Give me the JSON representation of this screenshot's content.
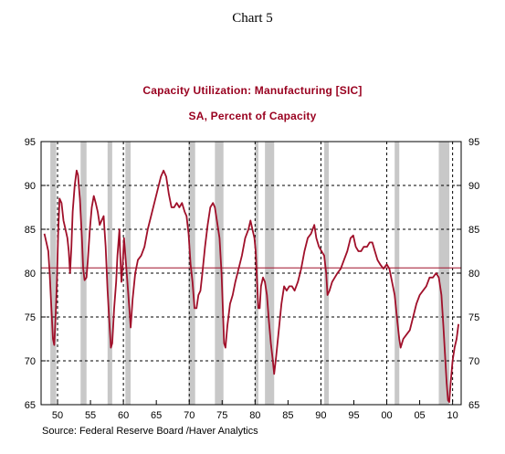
{
  "chart_label": "Chart 5",
  "source": "Source:  Federal Reserve Board /Haver Analytics",
  "chart_data": {
    "type": "line",
    "title": "Capacity Utilization: Manufacturing [SIC]",
    "subtitle": "SA, Percent of Capacity",
    "xlabel": "",
    "ylabel": "",
    "xlim": [
      1947.5,
      2011.3
    ],
    "ylim": [
      65,
      95
    ],
    "yticks": [
      65,
      70,
      75,
      80,
      85,
      90,
      95
    ],
    "xticks": [
      1950,
      1955,
      1960,
      1965,
      1970,
      1975,
      1980,
      1985,
      1990,
      1995,
      2000,
      2005,
      2010
    ],
    "xtick_labels": [
      "50",
      "55",
      "60",
      "65",
      "70",
      "75",
      "80",
      "85",
      "90",
      "95",
      "00",
      "05",
      "10"
    ],
    "y_axis_both_sides": true,
    "grid": "dashed vertical lines at decade marks, dashed horizontal lines at y ticks",
    "reference_line": 80.6,
    "colors": {
      "series": "#a0102a",
      "recession": "#c8c8c8",
      "reference": "#a0102a"
    },
    "recessions": [
      [
        1948.9,
        1949.8
      ],
      [
        1953.5,
        1954.4
      ],
      [
        1957.6,
        1958.3
      ],
      [
        1960.3,
        1961.1
      ],
      [
        1969.9,
        1970.9
      ],
      [
        1973.9,
        1975.2
      ],
      [
        1980.0,
        1980.5
      ],
      [
        1981.5,
        1982.9
      ],
      [
        1990.5,
        1991.2
      ],
      [
        2001.2,
        2001.9
      ],
      [
        2007.9,
        2009.5
      ]
    ],
    "series": [
      {
        "values": [
          [
            1948.0,
            84.5
          ],
          [
            1948.3,
            83.5
          ],
          [
            1948.6,
            82.5
          ],
          [
            1948.8,
            80.0
          ],
          [
            1949.0,
            77.0
          ],
          [
            1949.3,
            72.5
          ],
          [
            1949.5,
            71.8
          ],
          [
            1949.7,
            75.0
          ],
          [
            1949.9,
            79.0
          ],
          [
            1950.1,
            84.5
          ],
          [
            1950.3,
            88.5
          ],
          [
            1950.6,
            88.0
          ],
          [
            1950.9,
            86.0
          ],
          [
            1951.2,
            85.0
          ],
          [
            1951.5,
            84.0
          ],
          [
            1951.7,
            82.5
          ],
          [
            1951.9,
            80.0
          ],
          [
            1952.1,
            83.0
          ],
          [
            1952.3,
            87.0
          ],
          [
            1952.6,
            90.0
          ],
          [
            1952.9,
            91.7
          ],
          [
            1953.1,
            91.2
          ],
          [
            1953.4,
            88.5
          ],
          [
            1953.7,
            84.0
          ],
          [
            1953.9,
            80.5
          ],
          [
            1954.1,
            79.2
          ],
          [
            1954.4,
            79.5
          ],
          [
            1954.6,
            81.5
          ],
          [
            1954.9,
            85.0
          ],
          [
            1955.2,
            87.5
          ],
          [
            1955.5,
            88.8
          ],
          [
            1955.8,
            88.0
          ],
          [
            1956.1,
            87.0
          ],
          [
            1956.4,
            85.5
          ],
          [
            1956.7,
            86.0
          ],
          [
            1957.0,
            86.5
          ],
          [
            1957.3,
            83.0
          ],
          [
            1957.6,
            78.0
          ],
          [
            1957.9,
            74.0
          ],
          [
            1958.1,
            71.5
          ],
          [
            1958.3,
            72.0
          ],
          [
            1958.6,
            76.0
          ],
          [
            1958.9,
            79.0
          ],
          [
            1959.1,
            82.0
          ],
          [
            1959.4,
            85.0
          ],
          [
            1959.5,
            82.5
          ],
          [
            1959.7,
            79.0
          ],
          [
            1959.9,
            81.0
          ],
          [
            1960.1,
            84.0
          ],
          [
            1960.3,
            82.0
          ],
          [
            1960.6,
            79.0
          ],
          [
            1960.9,
            76.0
          ],
          [
            1961.1,
            73.8
          ],
          [
            1961.4,
            77.0
          ],
          [
            1961.8,
            80.0
          ],
          [
            1962.2,
            81.5
          ],
          [
            1962.7,
            82.0
          ],
          [
            1963.2,
            83.0
          ],
          [
            1963.7,
            85.0
          ],
          [
            1964.2,
            86.5
          ],
          [
            1964.7,
            88.0
          ],
          [
            1965.2,
            89.5
          ],
          [
            1965.7,
            91.0
          ],
          [
            1966.1,
            91.7
          ],
          [
            1966.5,
            91.0
          ],
          [
            1966.9,
            89.0
          ],
          [
            1967.3,
            87.5
          ],
          [
            1967.7,
            87.5
          ],
          [
            1968.1,
            88.0
          ],
          [
            1968.5,
            87.5
          ],
          [
            1968.9,
            88.0
          ],
          [
            1969.3,
            87.0
          ],
          [
            1969.6,
            86.5
          ],
          [
            1969.9,
            84.5
          ],
          [
            1970.2,
            81.0
          ],
          [
            1970.5,
            79.0
          ],
          [
            1970.8,
            76.0
          ],
          [
            1971.1,
            76.0
          ],
          [
            1971.4,
            77.5
          ],
          [
            1971.7,
            78.0
          ],
          [
            1972.0,
            80.0
          ],
          [
            1972.4,
            83.0
          ],
          [
            1972.8,
            85.5
          ],
          [
            1973.2,
            87.5
          ],
          [
            1973.6,
            88.0
          ],
          [
            1973.9,
            87.5
          ],
          [
            1974.2,
            86.0
          ],
          [
            1974.6,
            84.0
          ],
          [
            1974.9,
            80.0
          ],
          [
            1975.1,
            76.0
          ],
          [
            1975.3,
            72.0
          ],
          [
            1975.5,
            71.5
          ],
          [
            1975.8,
            74.0
          ],
          [
            1976.2,
            76.5
          ],
          [
            1976.6,
            77.5
          ],
          [
            1977.0,
            79.0
          ],
          [
            1977.5,
            80.5
          ],
          [
            1978.0,
            82.0
          ],
          [
            1978.5,
            84.0
          ],
          [
            1979.0,
            85.0
          ],
          [
            1979.3,
            86.0
          ],
          [
            1979.6,
            85.0
          ],
          [
            1979.9,
            84.0
          ],
          [
            1980.1,
            82.5
          ],
          [
            1980.3,
            79.0
          ],
          [
            1980.5,
            76.0
          ],
          [
            1980.7,
            76.0
          ],
          [
            1980.9,
            78.5
          ],
          [
            1981.2,
            79.5
          ],
          [
            1981.5,
            79.0
          ],
          [
            1981.8,
            77.5
          ],
          [
            1982.1,
            74.5
          ],
          [
            1982.4,
            72.0
          ],
          [
            1982.7,
            70.0
          ],
          [
            1982.9,
            68.5
          ],
          [
            1983.2,
            70.5
          ],
          [
            1983.6,
            73.5
          ],
          [
            1984.0,
            76.5
          ],
          [
            1984.4,
            78.5
          ],
          [
            1984.8,
            78.0
          ],
          [
            1985.2,
            78.5
          ],
          [
            1985.6,
            78.5
          ],
          [
            1986.0,
            78.0
          ],
          [
            1986.5,
            79.0
          ],
          [
            1987.0,
            80.5
          ],
          [
            1987.5,
            82.5
          ],
          [
            1988.0,
            84.0
          ],
          [
            1988.5,
            84.5
          ],
          [
            1989.0,
            85.5
          ],
          [
            1989.3,
            84.0
          ],
          [
            1989.7,
            83.0
          ],
          [
            1990.1,
            82.5
          ],
          [
            1990.5,
            82.0
          ],
          [
            1990.8,
            80.0
          ],
          [
            1991.0,
            77.5
          ],
          [
            1991.3,
            78.0
          ],
          [
            1991.7,
            79.0
          ],
          [
            1992.1,
            79.5
          ],
          [
            1992.5,
            80.0
          ],
          [
            1993.0,
            80.5
          ],
          [
            1993.5,
            81.5
          ],
          [
            1994.0,
            82.5
          ],
          [
            1994.5,
            84.0
          ],
          [
            1994.9,
            84.3
          ],
          [
            1995.3,
            83.0
          ],
          [
            1995.7,
            82.5
          ],
          [
            1996.1,
            82.5
          ],
          [
            1996.5,
            83.0
          ],
          [
            1997.0,
            83.0
          ],
          [
            1997.4,
            83.5
          ],
          [
            1997.8,
            83.5
          ],
          [
            1998.2,
            82.5
          ],
          [
            1998.6,
            81.5
          ],
          [
            1999.0,
            81.0
          ],
          [
            1999.5,
            80.5
          ],
          [
            2000.0,
            81.0
          ],
          [
            2000.4,
            80.5
          ],
          [
            2000.8,
            79.0
          ],
          [
            2001.2,
            77.5
          ],
          [
            2001.6,
            74.5
          ],
          [
            2001.9,
            72.5
          ],
          [
            2002.1,
            71.5
          ],
          [
            2002.5,
            72.5
          ],
          [
            2003.0,
            73.0
          ],
          [
            2003.5,
            73.5
          ],
          [
            2004.0,
            75.0
          ],
          [
            2004.5,
            76.5
          ],
          [
            2005.0,
            77.5
          ],
          [
            2005.5,
            78.0
          ],
          [
            2006.0,
            78.5
          ],
          [
            2006.5,
            79.5
          ],
          [
            2007.0,
            79.5
          ],
          [
            2007.5,
            80.0
          ],
          [
            2007.9,
            79.5
          ],
          [
            2008.3,
            77.5
          ],
          [
            2008.6,
            74.0
          ],
          [
            2008.9,
            70.0
          ],
          [
            2009.1,
            67.5
          ],
          [
            2009.3,
            65.5
          ],
          [
            2009.5,
            65.3
          ],
          [
            2009.7,
            67.5
          ],
          [
            2010.0,
            70.0
          ],
          [
            2010.3,
            71.5
          ],
          [
            2010.6,
            72.5
          ],
          [
            2010.9,
            74.2
          ]
        ]
      }
    ]
  }
}
